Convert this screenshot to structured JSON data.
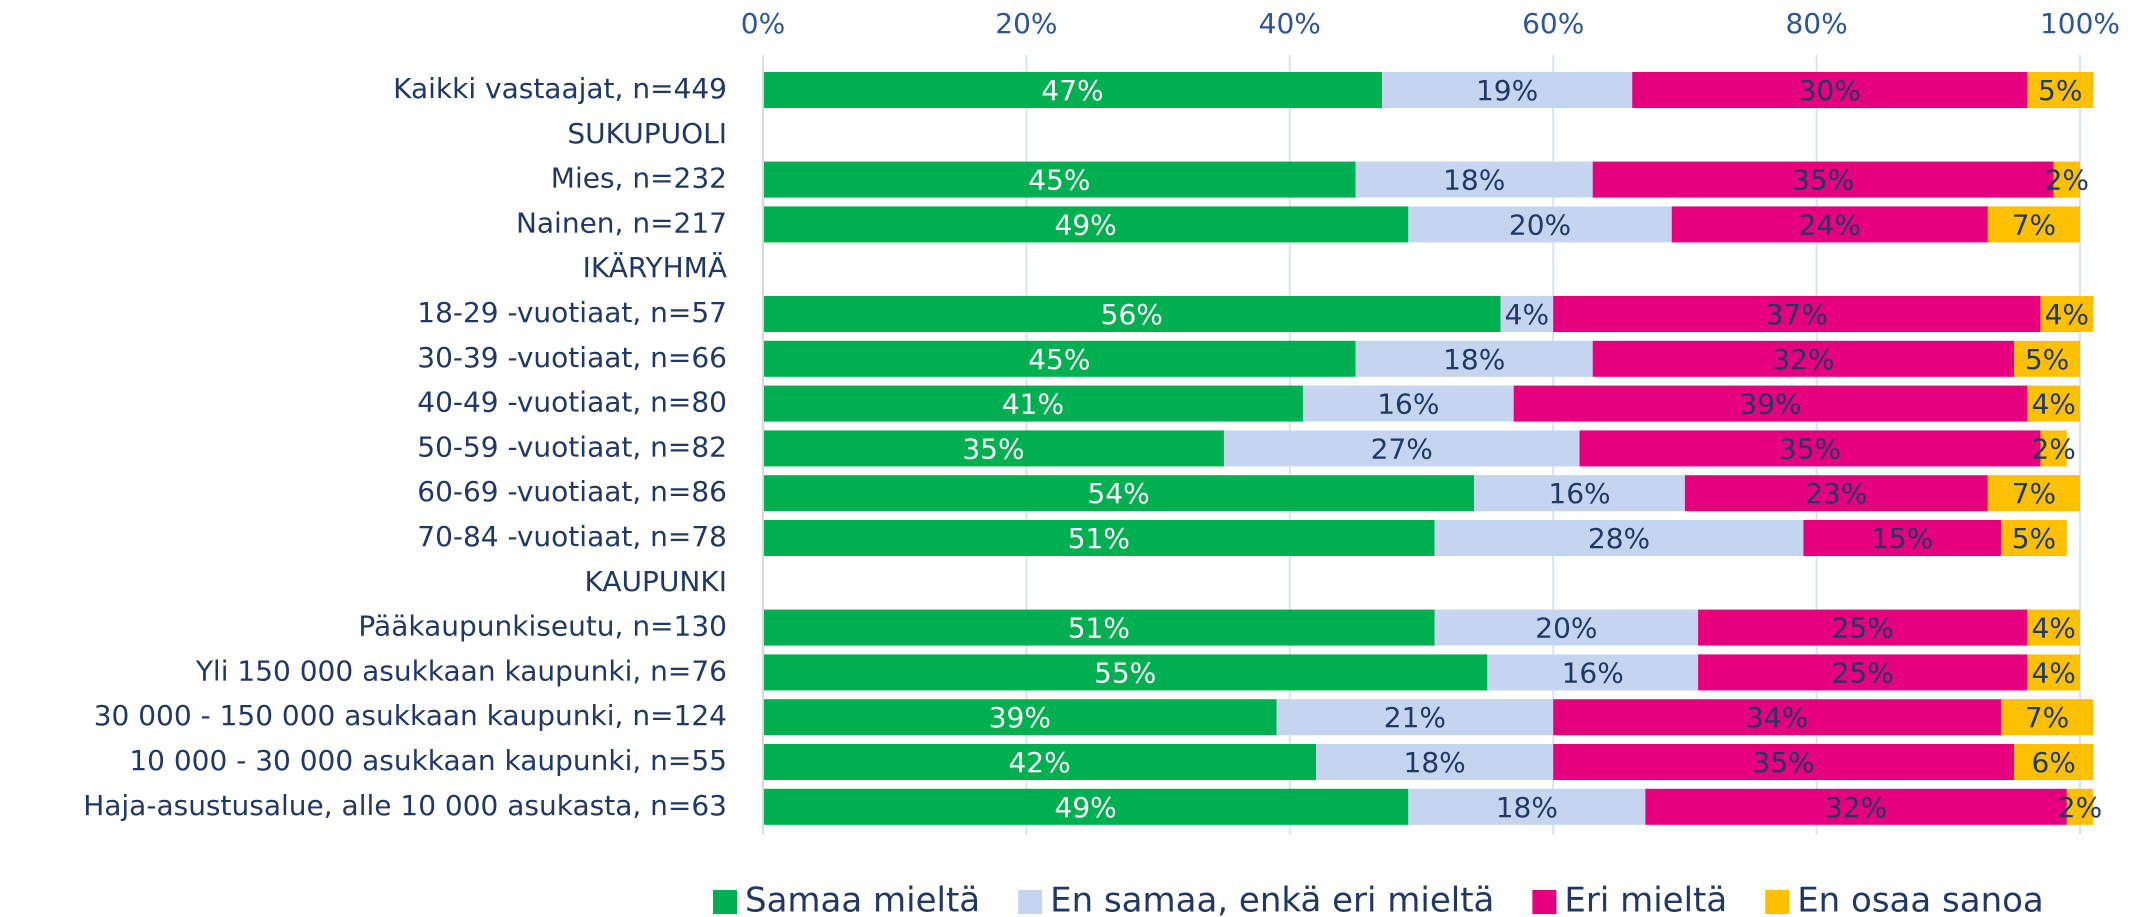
{
  "chart_data": {
    "type": "stacked-bar-horizontal",
    "categories": [
      "Kaikki vastaajat, n=449",
      "SUKUPUOLI",
      "Mies, n=232",
      "Nainen, n=217",
      "IKÄRYHMÄ",
      "18-29 -vuotiaat, n=57",
      "30-39 -vuotiaat, n=66",
      "40-49 -vuotiaat, n=80",
      "50-59 -vuotiaat, n=82",
      "60-69 -vuotiaat, n=86",
      "70-84 -vuotiaat, n=78",
      "KAUPUNKI",
      "Pääkaupunkiseutu, n=130",
      "Yli 150 000 asukkaan kaupunki, n=76",
      "30 000 - 150 000 asukkaan kaupunki, n=124",
      "10 000 - 30 000 asukkaan kaupunki, n=55",
      "Haja-asustusalue, alle 10 000 asukasta, n=63"
    ],
    "series": [
      {
        "name": "Samaa mieltä",
        "color": "#00b050",
        "label_color": "#ffffff",
        "values": [
          47,
          null,
          45,
          49,
          null,
          56,
          45,
          41,
          35,
          54,
          51,
          null,
          51,
          55,
          39,
          42,
          49
        ],
        "value_labels": [
          "47%",
          null,
          "45%",
          "49%",
          null,
          "56%",
          "45%",
          "41%",
          "35%",
          "54%",
          "51%",
          null,
          "51%",
          "55%",
          "39%",
          "42%",
          "49%"
        ]
      },
      {
        "name": "En samaa, enkä eri mieltä",
        "color": "#c5d5f0",
        "label_color": "#1f3864",
        "values": [
          19,
          null,
          18,
          20,
          null,
          4,
          18,
          16,
          27,
          16,
          28,
          null,
          20,
          16,
          21,
          18,
          18
        ],
        "value_labels": [
          "19%",
          null,
          "18%",
          "20%",
          null,
          "4%",
          "18%",
          "16%",
          "27%",
          "16%",
          "28%",
          null,
          "20%",
          "16%",
          "21%",
          "18%",
          "18%"
        ]
      },
      {
        "name": "Eri mieltä",
        "color": "#e6007e",
        "label_color": "#1f3864",
        "values": [
          30,
          null,
          35,
          24,
          null,
          37,
          32,
          39,
          35,
          23,
          15,
          null,
          25,
          25,
          34,
          35,
          32
        ],
        "value_labels": [
          "30%",
          null,
          "35%",
          "24%",
          null,
          "37%",
          "32%",
          "39%",
          "35%",
          "23%",
          "15%",
          null,
          "25%",
          "25%",
          "34%",
          "35%",
          "32%"
        ]
      },
      {
        "name": "En osaa sanoa",
        "color": "#ffc000",
        "label_color": "#1f3864",
        "values": [
          5,
          null,
          2,
          7,
          null,
          4,
          5,
          4,
          2,
          7,
          5,
          null,
          4,
          4,
          7,
          6,
          2
        ],
        "value_labels": [
          "5%",
          null,
          "2%",
          "7%",
          null,
          "4%",
          "5%",
          "4%",
          "2%",
          "7%",
          "5%",
          null,
          "4%",
          "4%",
          "7%",
          "6%",
          "2%"
        ]
      }
    ],
    "xlim": [
      0,
      100
    ],
    "xticks": [
      {
        "value": 0,
        "label": "0%"
      },
      {
        "value": 20,
        "label": "20%"
      },
      {
        "value": 40,
        "label": "40%"
      },
      {
        "value": 60,
        "label": "60%"
      },
      {
        "value": 80,
        "label": "80%"
      },
      {
        "value": 100,
        "label": "100%"
      }
    ],
    "grid": true,
    "legend": "bottom"
  }
}
